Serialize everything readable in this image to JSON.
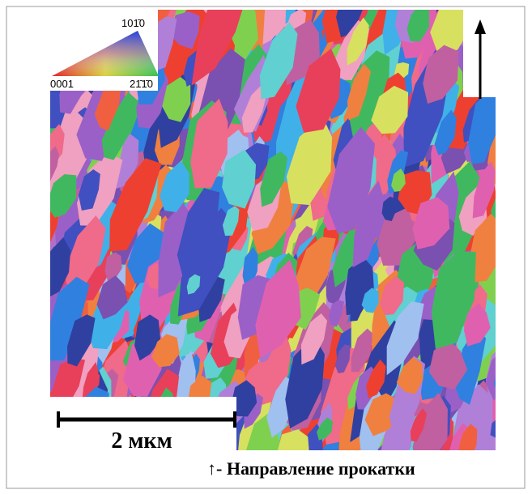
{
  "legend": {
    "top_label": "101̄0",
    "left_label": "0001",
    "right_label": "21̄1̄0"
  },
  "scale_bar": {
    "label": "2 мкм"
  },
  "caption": {
    "text": "↑- Направление прокатки"
  }
}
